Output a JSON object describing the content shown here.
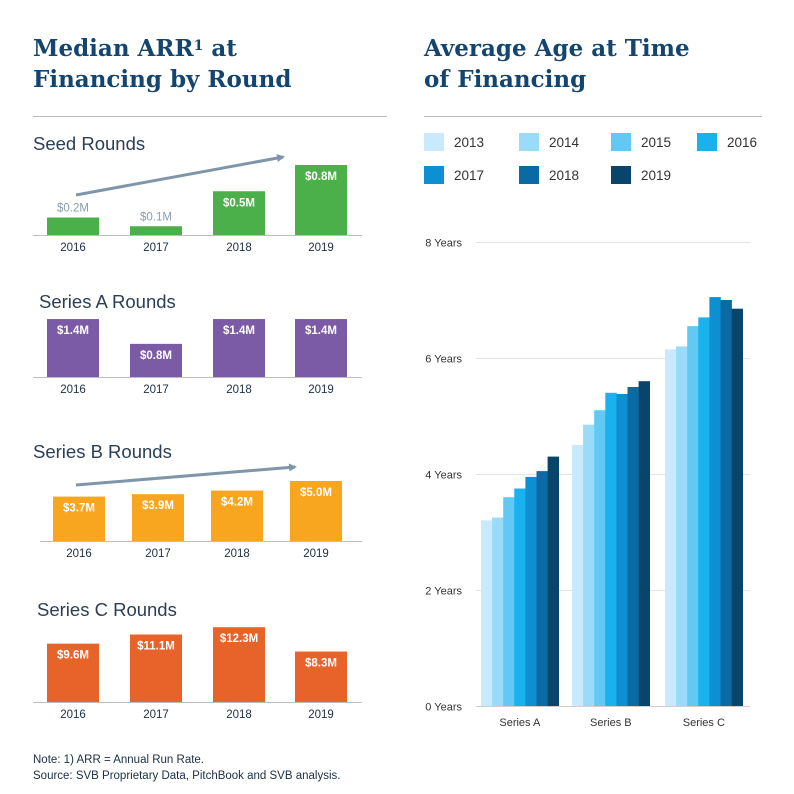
{
  "left_title": {
    "line1": "Median ARR",
    "sup": "1",
    "line1_end": " at",
    "line2": "Financing by Round"
  },
  "right_title": {
    "line1": "Average Age at Time",
    "line2": "of Financing"
  },
  "footnote": {
    "line1": "Note: 1) ARR = Annual Run Rate.",
    "line2": "Source: SVB Proprietary Data, PitchBook and SVB analysis."
  },
  "chart_data": [
    {
      "type": "bar",
      "title": "Seed Rounds",
      "categories": [
        "2016",
        "2017",
        "2018",
        "2019"
      ],
      "values": [
        0.2,
        0.1,
        0.5,
        0.8
      ],
      "labels": [
        "$0.2M",
        "$0.1M",
        "$0.5M",
        "$0.8M"
      ],
      "color": "#4bb04a",
      "trend_arrow": true
    },
    {
      "type": "bar",
      "title": "Series A Rounds",
      "categories": [
        "2016",
        "2017",
        "2018",
        "2019"
      ],
      "values": [
        1.4,
        0.8,
        1.4,
        1.4
      ],
      "labels": [
        "$1.4M",
        "$0.8M",
        "$1.4M",
        "$1.4M"
      ],
      "color": "#7b5aa6",
      "trend_arrow": false
    },
    {
      "type": "bar",
      "title": "Series B Rounds",
      "categories": [
        "2016",
        "2017",
        "2018",
        "2019"
      ],
      "values": [
        3.7,
        3.9,
        4.2,
        5.0
      ],
      "labels": [
        "$3.7M",
        "$3.9M",
        "$4.2M",
        "$5.0M"
      ],
      "color": "#f8a51f",
      "trend_arrow": true
    },
    {
      "type": "bar",
      "title": "Series C Rounds",
      "categories": [
        "2016",
        "2017",
        "2018",
        "2019"
      ],
      "values": [
        9.6,
        11.1,
        12.3,
        8.3
      ],
      "labels": [
        "$9.6M",
        "$11.1M",
        "$12.3M",
        "$8.3M"
      ],
      "color": "#e8632a",
      "trend_arrow": false
    },
    {
      "type": "bar",
      "title": "Average Age at Time of Financing",
      "categories": [
        "Series A",
        "Series B",
        "Series C"
      ],
      "yticks": [
        0,
        2,
        4,
        6,
        8
      ],
      "ytick_labels": [
        "0 Years",
        "2 Years",
        "4 Years",
        "6 Years",
        "8 Years"
      ],
      "ylim": [
        0,
        8
      ],
      "series": [
        {
          "name": "2013",
          "color": "#c9eafc",
          "values": [
            3.2,
            4.5,
            6.15
          ]
        },
        {
          "name": "2014",
          "color": "#99dbf8",
          "values": [
            3.25,
            4.85,
            6.2
          ]
        },
        {
          "name": "2015",
          "color": "#61c9f3",
          "values": [
            3.6,
            5.1,
            6.55
          ]
        },
        {
          "name": "2016",
          "color": "#19b2ef",
          "values": [
            3.75,
            5.4,
            6.7
          ]
        },
        {
          "name": "2017",
          "color": "#0e8fd2",
          "values": [
            3.95,
            5.38,
            7.05
          ]
        },
        {
          "name": "2018",
          "color": "#0a6aa4",
          "values": [
            4.05,
            5.5,
            7.0
          ]
        },
        {
          "name": "2019",
          "color": "#07456b",
          "values": [
            4.3,
            5.6,
            6.85
          ]
        }
      ]
    }
  ]
}
